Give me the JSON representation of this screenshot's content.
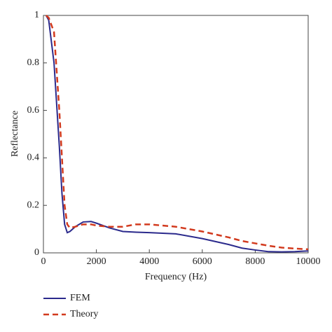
{
  "chart_data": {
    "type": "line",
    "x_label": "Frequency (Hz)",
    "y_label": "Reflectance",
    "x": [
      100,
      200,
      400,
      600,
      700,
      800,
      900,
      1000,
      1200,
      1500,
      1800,
      2000,
      2500,
      3000,
      3500,
      4000,
      5000,
      6000,
      7000,
      7500,
      8000,
      8500,
      9000,
      9500,
      10000
    ],
    "series": [
      {
        "name": "FEM",
        "color": "#2b2a8c",
        "dash": false,
        "values": [
          1,
          0.98,
          0.8,
          0.45,
          0.25,
          0.12,
          0.085,
          0.09,
          0.11,
          0.13,
          0.132,
          0.125,
          0.105,
          0.09,
          0.087,
          0.085,
          0.08,
          0.06,
          0.035,
          0.02,
          0.012,
          0.005,
          0.004,
          0.005,
          0.008
        ]
      },
      {
        "name": "Theory",
        "color": "#d23a1e",
        "dash": true,
        "values": [
          1,
          0.99,
          0.93,
          0.6,
          0.4,
          0.2,
          0.12,
          0.105,
          0.11,
          0.12,
          0.12,
          0.115,
          0.11,
          0.11,
          0.12,
          0.12,
          0.11,
          0.09,
          0.065,
          0.05,
          0.04,
          0.03,
          0.022,
          0.018,
          0.015
        ]
      }
    ],
    "xlim": [
      0,
      10000
    ],
    "xticks": [
      0,
      2000,
      4000,
      6000,
      8000,
      10000
    ],
    "ylim": [
      0,
      1
    ],
    "yticks": [
      0,
      0.2,
      0.4,
      0.6,
      0.8,
      1
    ]
  }
}
